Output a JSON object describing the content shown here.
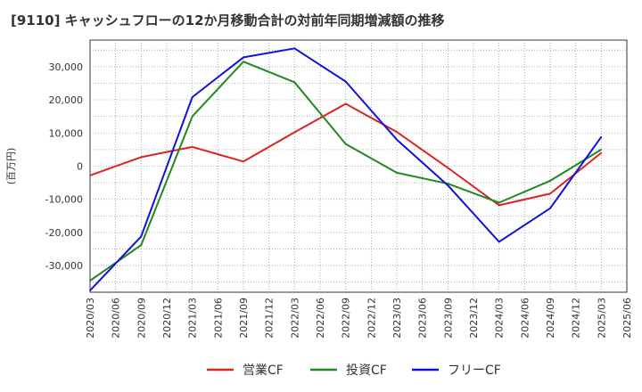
{
  "chart_data": {
    "type": "line",
    "title": "[9110]  キャッシュフローの12か月移動合計の対前年同期増減額の推移",
    "ylabel": "(百万円)",
    "xlabel": "",
    "ylim": [
      -38000,
      38000
    ],
    "yticks": [
      -30000,
      -20000,
      -10000,
      0,
      10000,
      20000,
      30000
    ],
    "ytick_labels": [
      "-30,000",
      "-20,000",
      "-10,000",
      "0",
      "10,000",
      "20,000",
      "30,000"
    ],
    "x_labels": [
      "2020/03",
      "2020/06",
      "2020/09",
      "2020/12",
      "2021/03",
      "2021/06",
      "2021/09",
      "2021/12",
      "2022/03",
      "2022/06",
      "2022/09",
      "2022/12",
      "2023/03",
      "2023/06",
      "2023/09",
      "2023/12",
      "2024/03",
      "2024/06",
      "2024/09",
      "2024/12",
      "2025/03",
      "2025/06"
    ],
    "grid": true,
    "legend_position": "bottom",
    "colors": {
      "operating": "#dd2222",
      "investing": "#228822",
      "free": "#1111dd"
    },
    "series": [
      {
        "name": "営業CF",
        "key": "operating",
        "x_index": [
          0,
          2,
          4,
          6,
          8,
          10,
          12,
          14,
          16,
          18,
          20
        ],
        "values": [
          -2800,
          2700,
          5800,
          1400,
          10200,
          18800,
          10300,
          -500,
          -11800,
          -8300,
          4000
        ]
      },
      {
        "name": "投資CF",
        "key": "investing",
        "x_index": [
          0,
          2,
          4,
          6,
          8,
          10,
          12,
          14,
          16,
          18,
          20
        ],
        "values": [
          -34500,
          -23800,
          15000,
          31500,
          25300,
          6700,
          -2000,
          -5300,
          -11000,
          -4400,
          5000
        ]
      },
      {
        "name": "フリーCF",
        "key": "free",
        "x_index": [
          0,
          2,
          4,
          6,
          8,
          10,
          12,
          14,
          16,
          18,
          20
        ],
        "values": [
          -37500,
          -21200,
          20800,
          32800,
          35500,
          25500,
          8000,
          -5800,
          -22800,
          -12700,
          8800
        ]
      }
    ]
  }
}
